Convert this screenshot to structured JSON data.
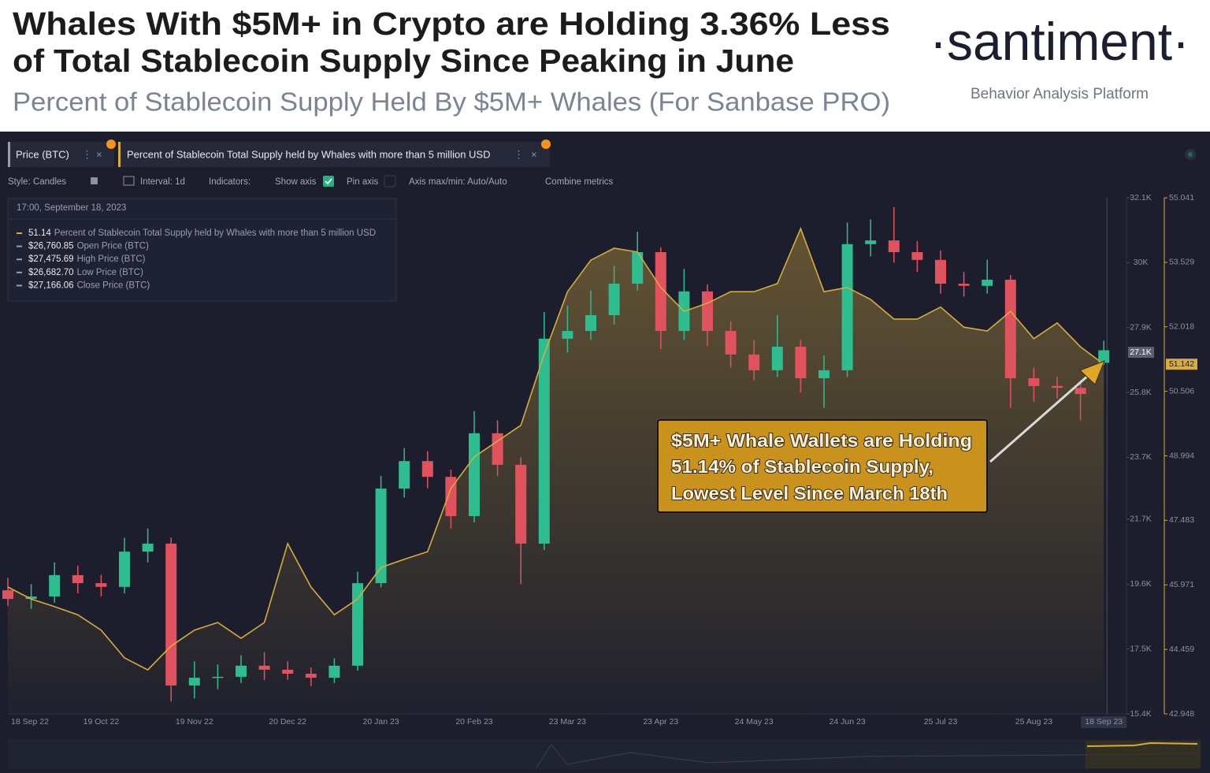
{
  "header": {
    "title_lines": [
      "Whales With $5M+ in Crypto are Holding 3.36% Less",
      "of Total Stablecoin Supply Since Peaking in June"
    ],
    "subtitle": "Percent of Stablecoin Supply Held By $5M+ Whales (For Sanbase PRO)"
  },
  "brand": {
    "logo": "·santiment·",
    "tagline": "Behavior Analysis Platform"
  },
  "toolbar": [
    "Style: Candles",
    "Interval: 1d",
    "Indicators:",
    "Show axis",
    "Pin axis",
    "Axis max/min: Auto/Auto",
    "Combine metrics"
  ],
  "tooltip": {
    "date": "17:00, September 18, 2023",
    "rows": [
      {
        "value": "51.14",
        "text": "Percent of Stablecoin Total Supply held by Whales with more than 5 million USD"
      },
      {
        "value": "$26,760.85",
        "text": "Open Price (BTC)"
      },
      {
        "value": "$27,475.69",
        "text": "High Price (BTC)"
      },
      {
        "value": "$26,682.70",
        "text": "Low Price (BTC)"
      },
      {
        "value": "$27,166.06",
        "text": "Close Price (BTC)"
      }
    ]
  },
  "annotation": [
    "$5M+ Whale Wallets are Holding",
    "51.14% of Stablecoin Supply,",
    "Lowest Level Since March 18th"
  ],
  "chart_data": {
    "type": "candlestick",
    "categories": [
      "18 Sep 22",
      null,
      null,
      null,
      "19 Oct 22",
      null,
      null,
      null,
      "19 Nov 22",
      null,
      null,
      null,
      "20 Dec 22",
      null,
      null,
      null,
      "20 Jan 23",
      null,
      null,
      null,
      "20 Feb 23",
      null,
      null,
      null,
      "23 Mar 23",
      null,
      null,
      null,
      "23 Apr 23",
      null,
      null,
      null,
      "24 May 23",
      null,
      null,
      null,
      "24 Jun 23",
      null,
      null,
      null,
      "25 Jul 23",
      null,
      null,
      null,
      "25 Aug 23",
      null,
      null,
      "18 Sep 23"
    ],
    "series": [
      {
        "name": "Price (BTC)",
        "type": "candlestick",
        "up_color": "#2dbd8f",
        "down_color": "#e0525e",
        "open": [
          19400,
          19120,
          19200,
          19890,
          19630,
          19510,
          20650,
          20910,
          16320,
          16570,
          16600,
          16960,
          16830,
          16700,
          16570,
          16960,
          19630,
          22690,
          23580,
          23070,
          21800,
          24480,
          23460,
          20910,
          27540,
          27790,
          28300,
          29320,
          30340,
          27790,
          29070,
          27790,
          27030,
          26520,
          27280,
          26260,
          26520,
          30600,
          30720,
          30340,
          30090,
          29320,
          29250,
          29450,
          26260,
          26010,
          25950,
          26760.85
        ],
        "high": [
          19800,
          19600,
          20300,
          20200,
          19900,
          21100,
          21400,
          21100,
          17100,
          17000,
          17300,
          17400,
          17100,
          16900,
          17200,
          20000,
          23100,
          24000,
          23900,
          23300,
          25200,
          24900,
          23700,
          28400,
          28600,
          29100,
          29900,
          31000,
          30500,
          29800,
          29300,
          28100,
          27500,
          28300,
          27500,
          27000,
          31300,
          31400,
          31800,
          30700,
          30400,
          29700,
          30100,
          29600,
          26600,
          26300,
          26200,
          27475.69
        ],
        "low": [
          18900,
          18800,
          19000,
          19300,
          19200,
          19300,
          20300,
          15800,
          15900,
          16200,
          16400,
          16500,
          16500,
          16300,
          16400,
          16800,
          19500,
          22400,
          22700,
          21400,
          21600,
          23100,
          19600,
          20700,
          27100,
          27500,
          28000,
          29100,
          27200,
          27500,
          27300,
          26600,
          26200,
          26300,
          25800,
          25300,
          26300,
          30200,
          30000,
          29700,
          29000,
          28900,
          29000,
          25300,
          25500,
          25600,
          24900,
          26682.7
        ],
        "close": [
          19120,
          19200,
          19890,
          19630,
          19510,
          20650,
          20910,
          16320,
          16570,
          16600,
          16960,
          16830,
          16700,
          16570,
          16960,
          19630,
          22690,
          23580,
          23070,
          21800,
          24480,
          23460,
          20910,
          27540,
          27790,
          28300,
          29320,
          30340,
          27790,
          29070,
          27790,
          27030,
          26520,
          27280,
          26260,
          26520,
          30600,
          30720,
          30340,
          30090,
          29320,
          29250,
          29450,
          26260,
          26010,
          25950,
          25750,
          27166.06
        ]
      },
      {
        "name": "Percent of Stablecoin Total Supply held by Whales with more than 5 million USD",
        "type": "area",
        "axis": "y2",
        "color": "#d7ab3c",
        "values": [
          45.92,
          45.64,
          45.46,
          45.27,
          44.91,
          44.26,
          43.98,
          44.54,
          44.91,
          45.09,
          44.72,
          45.09,
          46.94,
          45.92,
          45.27,
          45.64,
          46.38,
          46.57,
          46.75,
          48.23,
          48.97,
          49.34,
          49.71,
          51.37,
          52.84,
          53.58,
          53.86,
          53.77,
          52.94,
          52.38,
          52.57,
          52.84,
          52.84,
          53.03,
          54.32,
          52.84,
          52.94,
          52.66,
          52.2,
          52.2,
          52.48,
          52.01,
          51.92,
          52.38,
          51.74,
          52.11,
          51.55,
          51.14
        ]
      }
    ],
    "ylim": [
      15400,
      32100
    ],
    "yticks": [
      {
        "value": 15400,
        "label": "15.4K"
      },
      {
        "value": 17500,
        "label": "17.5K"
      },
      {
        "value": 19600,
        "label": "19.6K"
      },
      {
        "value": 21700,
        "label": "21.7K"
      },
      {
        "value": 23700,
        "label": "23.7K"
      },
      {
        "value": 25800,
        "label": "25.8K"
      },
      {
        "value": 27900,
        "label": "27.9K"
      },
      {
        "value": 30000,
        "label": "30K"
      },
      {
        "value": 32100,
        "label": "32.1K"
      }
    ],
    "y2lim": [
      42.948,
      55.041
    ],
    "y2ticks": [
      42.948,
      44.459,
      45.971,
      47.483,
      48.994,
      50.506,
      52.018,
      53.529,
      55.041
    ],
    "price_marker": {
      "value": 27100,
      "label": "27.1K"
    },
    "whale_marker": {
      "value": 51.142,
      "label": "51.142"
    },
    "grid": false
  }
}
